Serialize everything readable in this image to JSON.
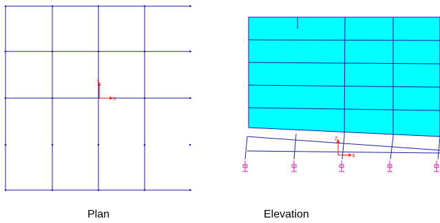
{
  "captions": {
    "plan": "Plan",
    "elevation": "Elevation"
  },
  "axis_labels": {
    "plan_x": "X",
    "plan_y": "Y",
    "elevation_x": "X",
    "elevation_z": "Z"
  },
  "colors": {
    "grid_line": "#1a1aa8",
    "wall_fill": "#00ffff",
    "axis_marker": "#ff0000",
    "support": "#d41bb4",
    "caption": "#000000"
  },
  "icons": {
    "support": "pinned-support-icon",
    "axes": "coordinate-axes-icon"
  }
}
